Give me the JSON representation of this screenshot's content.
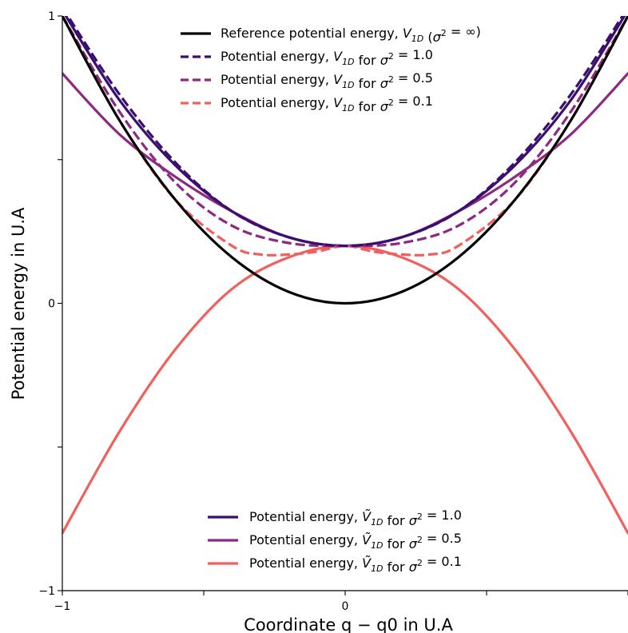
{
  "chart_data": {
    "type": "line",
    "xlabel": "Coordinate q − q0 in U.A",
    "ylabel": "Potential energy in U.A",
    "xlim": [
      -1,
      1
    ],
    "ylim": [
      -1,
      1
    ],
    "x_ticks": [
      -1,
      -0.5,
      0,
      0.5,
      1
    ],
    "x_tick_labels": [
      "−1",
      "",
      "0",
      "",
      ""
    ],
    "y_ticks": [
      -1,
      -0.5,
      0,
      0.5,
      1
    ],
    "y_tick_labels": [
      "−1",
      "",
      "0",
      "",
      "1"
    ],
    "grid": false,
    "legends": [
      {
        "placement": "upper-center",
        "entries": [
          {
            "series": 0,
            "text": "Reference potential energy, V1D  (σ2 = ∞)"
          },
          {
            "series": 1,
            "text": "Potential energy, V1D for σ2 = 1.0"
          },
          {
            "series": 2,
            "text": "Potential energy, V1D for σ2 = 0.5"
          },
          {
            "series": 3,
            "text": "Potential energy, V1D for σ2 = 0.1"
          }
        ]
      },
      {
        "placement": "lower-center",
        "entries": [
          {
            "series": 4,
            "text": "Potential energy, Ṽ1D for σ2 = 1.0"
          },
          {
            "series": 5,
            "text": "Potential energy, Ṽ1D for σ2 = 0.5"
          },
          {
            "series": 6,
            "text": "Potential energy, Ṽ1D for σ2 = 0.1"
          }
        ]
      }
    ],
    "series": [
      {
        "name": "Reference potential energy, V1D (σ2 = ∞)",
        "color": "#000000",
        "style": "solid",
        "x": [
          -1.0,
          -0.8,
          -0.6,
          -0.4,
          -0.2,
          0.0,
          0.2,
          0.4,
          0.6,
          0.8,
          1.0
        ],
        "y": [
          1.0,
          0.64,
          0.36,
          0.16,
          0.04,
          0.0,
          0.04,
          0.16,
          0.36,
          0.64,
          1.0
        ]
      },
      {
        "name": "Potential energy, V1D for σ2 = 1.0",
        "color": "#3b0f70",
        "style": "dashed",
        "x": [
          -1.0,
          -0.8,
          -0.6,
          -0.4,
          -0.2,
          0.0,
          0.2,
          0.4,
          0.6,
          0.8,
          1.0
        ],
        "y": [
          1.03,
          0.73,
          0.49,
          0.32,
          0.23,
          0.2,
          0.23,
          0.32,
          0.49,
          0.73,
          1.03
        ]
      },
      {
        "name": "Potential energy, V1D for σ2 = 0.5",
        "color": "#8c2981",
        "style": "dashed",
        "x": [
          -1.0,
          -0.8,
          -0.6,
          -0.4,
          -0.2,
          0.0,
          0.2,
          0.4,
          0.6,
          0.8,
          1.0
        ],
        "y": [
          1.0,
          0.67,
          0.42,
          0.27,
          0.21,
          0.2,
          0.21,
          0.27,
          0.42,
          0.67,
          1.0
        ]
      },
      {
        "name": "Potential energy, V1D for σ2 = 0.1",
        "color": "#f1605d",
        "style": "dashed",
        "x": [
          -1.0,
          -0.8,
          -0.6,
          -0.4,
          -0.3,
          -0.2,
          -0.1,
          0.0,
          0.1,
          0.2,
          0.3,
          0.4,
          0.6,
          0.8,
          1.0
        ],
        "y": [
          1.0,
          0.64,
          0.36,
          0.2,
          0.17,
          0.17,
          0.18,
          0.2,
          0.18,
          0.17,
          0.17,
          0.2,
          0.36,
          0.64,
          1.0
        ]
      },
      {
        "name": "Potential energy, Ṽ1D for σ2 = 1.0",
        "color": "#3b0f70",
        "style": "solid",
        "x": [
          -1.0,
          -0.8,
          -0.6,
          -0.4,
          -0.2,
          0.0,
          0.2,
          0.4,
          0.6,
          0.8,
          1.0
        ],
        "y": [
          1.02,
          0.71,
          0.48,
          0.32,
          0.23,
          0.2,
          0.23,
          0.32,
          0.48,
          0.71,
          1.02
        ]
      },
      {
        "name": "Potential energy, Ṽ1D for σ2 = 0.5",
        "color": "#8c2981",
        "style": "solid",
        "x": [
          -1.0,
          -0.8,
          -0.6,
          -0.4,
          -0.2,
          0.0,
          0.2,
          0.4,
          0.6,
          0.8,
          1.0
        ],
        "y": [
          0.8,
          0.59,
          0.44,
          0.32,
          0.23,
          0.2,
          0.23,
          0.32,
          0.44,
          0.59,
          0.8
        ]
      },
      {
        "name": "Potential energy, Ṽ1D for σ2 = 0.1",
        "color": "#f1605d",
        "style": "solid",
        "x": [
          -1.0,
          -0.8,
          -0.6,
          -0.4,
          -0.2,
          0.0,
          0.2,
          0.4,
          0.6,
          0.8,
          1.0
        ],
        "y": [
          -0.8,
          -0.45,
          -0.16,
          0.05,
          0.16,
          0.2,
          0.16,
          0.05,
          -0.16,
          -0.45,
          -0.8
        ]
      }
    ]
  }
}
